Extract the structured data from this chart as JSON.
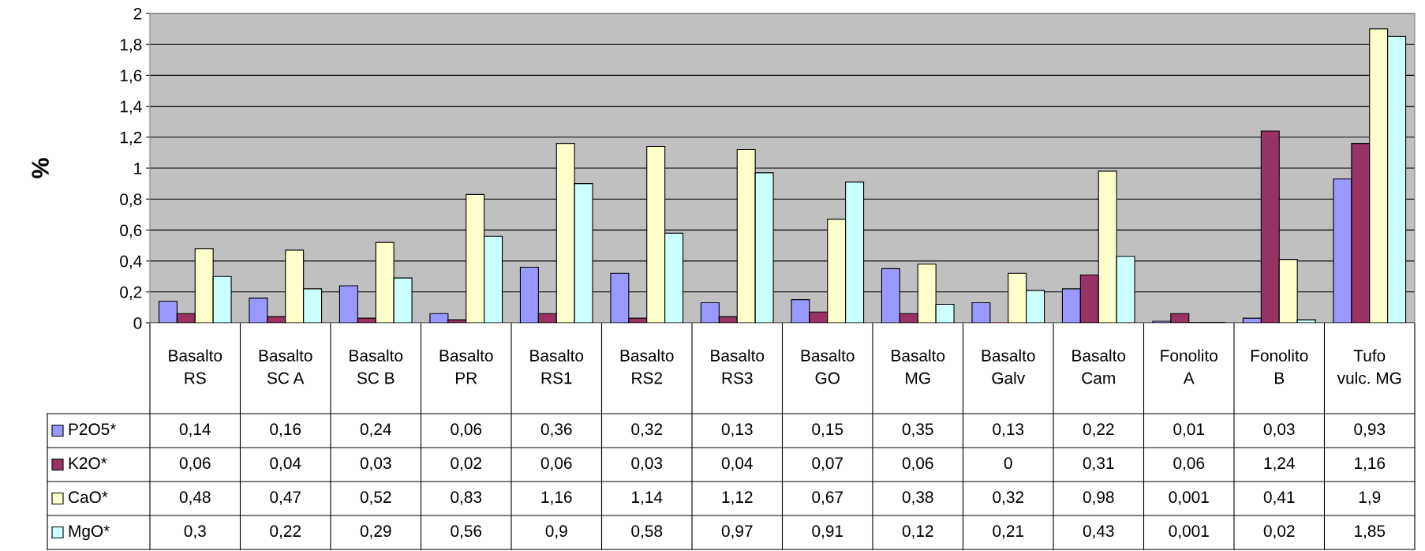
{
  "chart_data": {
    "type": "bar",
    "ylabel": "%",
    "categories": [
      "Basalto RS",
      "Basalto SC A",
      "Basalto SC B",
      "Basalto PR",
      "Basalto RS1",
      "Basalto RS2",
      "Basalto RS3",
      "Basalto GO",
      "Basalto MG",
      "Basalto Galv",
      "Basalto Cam",
      "Fonolito A",
      "Fonolito B",
      "Tufo vulc. MG"
    ],
    "series": [
      {
        "name": "P2O5*",
        "color": "#9999ff",
        "values": [
          0.14,
          0.16,
          0.24,
          0.06,
          0.36,
          0.32,
          0.13,
          0.15,
          0.35,
          0.13,
          0.22,
          0.01,
          0.03,
          0.93
        ],
        "value_labels": [
          "0,14",
          "0,16",
          "0,24",
          "0,06",
          "0,36",
          "0,32",
          "0,13",
          "0,15",
          "0,35",
          "0,13",
          "0,22",
          "0,01",
          "0,03",
          "0,93"
        ]
      },
      {
        "name": "K2O*",
        "color": "#993366",
        "values": [
          0.06,
          0.04,
          0.03,
          0.02,
          0.06,
          0.03,
          0.04,
          0.07,
          0.06,
          0,
          0.31,
          0.06,
          1.24,
          1.16
        ],
        "value_labels": [
          "0,06",
          "0,04",
          "0,03",
          "0,02",
          "0,06",
          "0,03",
          "0,04",
          "0,07",
          "0,06",
          "0",
          "0,31",
          "0,06",
          "1,24",
          "1,16"
        ]
      },
      {
        "name": "CaO*",
        "color": "#ffffcc",
        "values": [
          0.48,
          0.47,
          0.52,
          0.83,
          1.16,
          1.14,
          1.12,
          0.67,
          0.38,
          0.32,
          0.98,
          0.001,
          0.41,
          1.9
        ],
        "value_labels": [
          "0,48",
          "0,47",
          "0,52",
          "0,83",
          "1,16",
          "1,14",
          "1,12",
          "0,67",
          "0,38",
          "0,32",
          "0,98",
          "0,001",
          "0,41",
          "1,9"
        ]
      },
      {
        "name": "MgO*",
        "color": "#ccffff",
        "values": [
          0.3,
          0.22,
          0.29,
          0.56,
          0.9,
          0.58,
          0.97,
          0.91,
          0.12,
          0.21,
          0.43,
          0.001,
          0.02,
          1.85
        ],
        "value_labels": [
          "0,3",
          "0,22",
          "0,29",
          "0,56",
          "0,9",
          "0,58",
          "0,97",
          "0,91",
          "0,12",
          "0,21",
          "0,43",
          "0,001",
          "0,02",
          "1,85"
        ]
      }
    ],
    "ylim": [
      0,
      2
    ],
    "yticks": [
      0,
      {
        "value": 0.2,
        "label": "0,2"
      },
      {
        "value": 0.4,
        "label": "0,4"
      },
      {
        "value": 0.6,
        "label": "0,6"
      },
      {
        "value": 0.8,
        "label": "0,8"
      },
      1,
      {
        "value": 1.2,
        "label": "1,2"
      },
      {
        "value": 1.4,
        "label": "1,4"
      },
      {
        "value": 1.6,
        "label": "1,6"
      },
      {
        "value": 1.8,
        "label": "1,8"
      },
      2
    ],
    "grid": "y",
    "legend": "bottom left"
  }
}
